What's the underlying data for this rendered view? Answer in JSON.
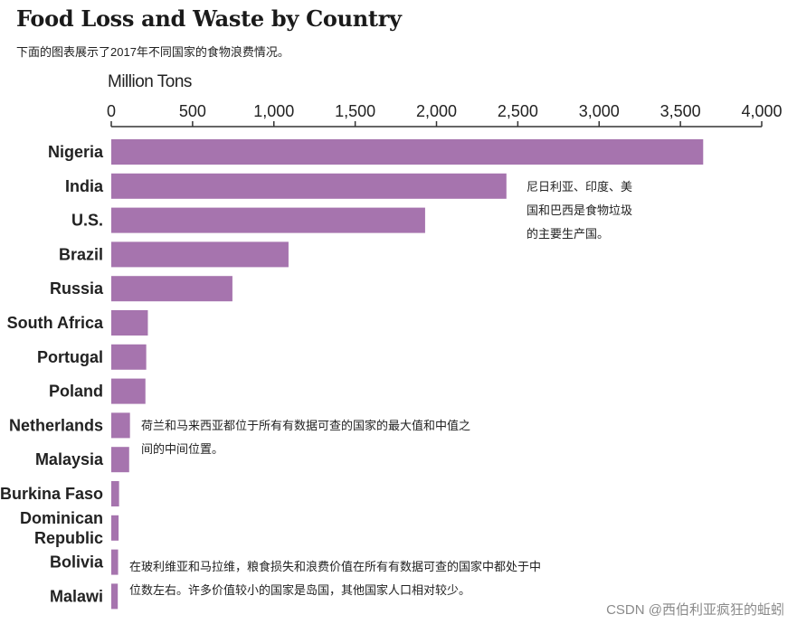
{
  "header": {
    "title": "Food Loss and Waste by Country",
    "subtitle": "下面的图表展示了2017年不同国家的食物浪费情况。"
  },
  "watermark": "CSDN @西伯利亚疯狂的蚯蚓",
  "colors": {
    "bar": "#a674ae",
    "axis": "#333333"
  },
  "notes": {
    "top": [
      "尼日利亚、印度、美",
      "国和巴西是食物垃圾",
      "的主要生产国。"
    ],
    "middle": [
      "荷兰和马来西亚都位于所有有数据可查的国家的最大值和中值之",
      "间的中间位置。"
    ],
    "bottom": [
      "在玻利维亚和马拉维，粮食损失和浪费价值在所有有数据可查的国家中都处于中",
      "位数左右。许多价值较小的国家是岛国，其他国家人口相对较少。"
    ]
  },
  "chart_data": {
    "type": "bar",
    "orientation": "horizontal",
    "unit_label": "Million Tons",
    "xlim": [
      0,
      4000
    ],
    "ticks": [
      "0",
      "500",
      "1,000",
      "1,500",
      "2,000",
      "2,500",
      "3,000",
      "3,500",
      "4,000"
    ],
    "tick_values": [
      0,
      500,
      1000,
      1500,
      2000,
      2500,
      3000,
      3500,
      4000
    ],
    "axis_position": "top",
    "grid": false,
    "categories": [
      [
        "Nigeria"
      ],
      [
        "India"
      ],
      [
        "U.S."
      ],
      [
        "Brazil"
      ],
      [
        "Russia"
      ],
      [
        "South Africa"
      ],
      [
        "Portugal"
      ],
      [
        "Poland"
      ],
      [
        "Netherlands"
      ],
      [
        "Malaysia"
      ],
      [
        "Burkina Faso"
      ],
      [
        "Dominican",
        "Republic"
      ],
      [
        "Bolivia"
      ],
      [
        "Malawi"
      ]
    ],
    "values": [
      3640,
      2430,
      1930,
      1090,
      745,
      225,
      215,
      210,
      115,
      110,
      48,
      45,
      42,
      40
    ]
  }
}
